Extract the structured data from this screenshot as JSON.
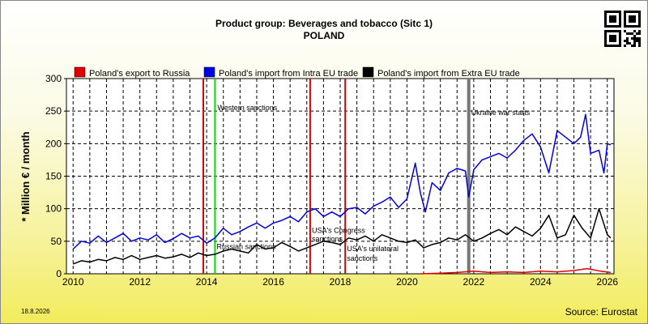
{
  "chart_data": {
    "type": "line",
    "title": "Product group: Beverages and tobacco (Sitc 1)",
    "subtitle": "POLAND",
    "ylabel": "* Million € / month",
    "xlabel": "",
    "xlim": [
      2009.8,
      2026.2
    ],
    "ylim": [
      0,
      300
    ],
    "yticks": [
      0,
      50,
      100,
      150,
      200,
      250,
      300
    ],
    "xticks": [
      2010,
      2012,
      2014,
      2016,
      2018,
      2020,
      2022,
      2024,
      2026
    ],
    "grid": true,
    "legend_position": "top",
    "legend": [
      {
        "name": "Poland's export to Russia",
        "color": "#e00000"
      },
      {
        "name": "Poland's import from Intra EU trade",
        "color": "#0000e0"
      },
      {
        "name": "Poland's import from Extra EU trade",
        "color": "#000000"
      }
    ],
    "events": [
      {
        "x": 2013.9,
        "color": "#e00000",
        "label": ""
      },
      {
        "x": 2014.25,
        "color": "#00dd00",
        "label": "Western sanctions"
      },
      {
        "x": 2017.1,
        "color": "#e00000",
        "label": ""
      },
      {
        "x": 2018.15,
        "color": "#e00000",
        "label": ""
      },
      {
        "x": 2021.85,
        "color": "#777777",
        "label": "Ukraine war starts"
      }
    ],
    "annotations": [
      {
        "text": "Russian sanctions",
        "x": 2014.3,
        "y": 38
      },
      {
        "text": "USA's Congress",
        "x": 2017.15,
        "y": 63
      },
      {
        "text": "sanctions",
        "x": 2017.15,
        "y": 50
      },
      {
        "text": "USA's unilateral",
        "x": 2018.2,
        "y": 35
      },
      {
        "text": "sanctions",
        "x": 2018.2,
        "y": 20
      }
    ],
    "series": [
      {
        "name": "Poland's import from Intra EU trade",
        "color": "#0000e0",
        "x": [
          2010.0,
          2010.25,
          2010.5,
          2010.75,
          2011.0,
          2011.25,
          2011.5,
          2011.75,
          2012.0,
          2012.25,
          2012.5,
          2012.75,
          2013.0,
          2013.25,
          2013.5,
          2013.75,
          2014.0,
          2014.25,
          2014.5,
          2014.75,
          2015.0,
          2015.25,
          2015.5,
          2015.75,
          2016.0,
          2016.25,
          2016.5,
          2016.75,
          2017.0,
          2017.25,
          2017.5,
          2017.75,
          2018.0,
          2018.25,
          2018.5,
          2018.75,
          2019.0,
          2019.25,
          2019.5,
          2019.75,
          2020.0,
          2020.25,
          2020.4,
          2020.55,
          2020.75,
          2021.0,
          2021.25,
          2021.5,
          2021.75,
          2021.85,
          2022.0,
          2022.25,
          2022.5,
          2022.75,
          2023.0,
          2023.25,
          2023.5,
          2023.75,
          2024.0,
          2024.25,
          2024.5,
          2024.75,
          2025.0,
          2025.2,
          2025.35,
          2025.5,
          2025.75,
          2025.9,
          2026.0,
          2026.1
        ],
        "values": [
          38,
          50,
          47,
          58,
          48,
          55,
          62,
          50,
          55,
          52,
          60,
          48,
          54,
          62,
          55,
          58,
          47,
          55,
          70,
          60,
          65,
          72,
          78,
          70,
          78,
          82,
          88,
          80,
          95,
          100,
          88,
          95,
          88,
          100,
          102,
          92,
          104,
          110,
          118,
          102,
          115,
          170,
          125,
          95,
          140,
          128,
          155,
          162,
          158,
          118,
          160,
          175,
          180,
          185,
          178,
          190,
          205,
          215,
          195,
          155,
          220,
          210,
          200,
          210,
          245,
          185,
          190,
          155,
          200,
          198
        ]
      },
      {
        "name": "Poland's import from Extra EU trade",
        "color": "#000000",
        "x": [
          2010.0,
          2010.25,
          2010.5,
          2010.75,
          2011.0,
          2011.25,
          2011.5,
          2011.75,
          2012.0,
          2012.25,
          2012.5,
          2012.75,
          2013.0,
          2013.25,
          2013.5,
          2013.75,
          2014.0,
          2014.25,
          2014.5,
          2014.75,
          2015.0,
          2015.25,
          2015.5,
          2015.75,
          2016.0,
          2016.25,
          2016.5,
          2016.75,
          2017.0,
          2017.25,
          2017.5,
          2017.75,
          2018.0,
          2018.25,
          2018.5,
          2018.75,
          2019.0,
          2019.25,
          2019.5,
          2019.75,
          2020.0,
          2020.25,
          2020.5,
          2020.75,
          2021.0,
          2021.25,
          2021.5,
          2021.75,
          2022.0,
          2022.25,
          2022.5,
          2022.75,
          2023.0,
          2023.25,
          2023.5,
          2023.75,
          2024.0,
          2024.25,
          2024.5,
          2024.75,
          2025.0,
          2025.25,
          2025.5,
          2025.75,
          2026.0,
          2026.1
        ],
        "values": [
          15,
          20,
          18,
          22,
          20,
          25,
          22,
          28,
          22,
          25,
          28,
          24,
          26,
          30,
          25,
          32,
          28,
          30,
          35,
          38,
          35,
          32,
          45,
          38,
          40,
          48,
          42,
          35,
          40,
          45,
          50,
          48,
          45,
          55,
          52,
          58,
          50,
          60,
          55,
          50,
          48,
          52,
          40,
          45,
          48,
          55,
          52,
          60,
          50,
          55,
          62,
          68,
          60,
          72,
          65,
          58,
          70,
          90,
          55,
          60,
          90,
          70,
          55,
          100,
          60,
          55
        ]
      },
      {
        "name": "Poland's export to Russia",
        "color": "#e00000",
        "x": [
          2020.4,
          2021.0,
          2021.5,
          2022.0,
          2022.5,
          2023.0,
          2023.5,
          2024.0,
          2024.5,
          2025.0,
          2025.4,
          2025.8,
          2026.1
        ],
        "values": [
          0,
          1,
          2,
          4,
          2,
          3,
          2,
          4,
          3,
          5,
          8,
          4,
          2
        ]
      }
    ]
  },
  "footer": {
    "date": "18.8.2026",
    "source": "Source: Eurostat"
  }
}
